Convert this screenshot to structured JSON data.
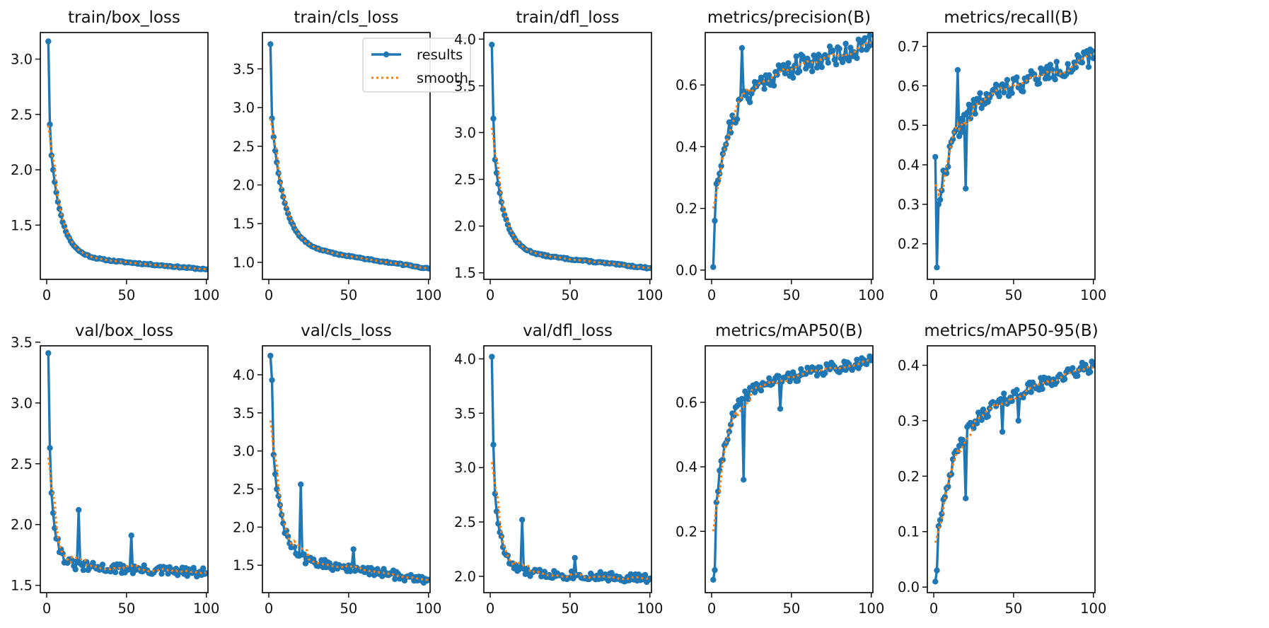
{
  "figure": {
    "series_names": [
      "results",
      "smooth"
    ],
    "colors": {
      "results": "#1f77b4",
      "smooth": "#ff7f0e",
      "axes": "#000000",
      "background": "#ffffff"
    }
  },
  "chart_data": [
    {
      "type": "line",
      "title": "train/box_loss",
      "x_ticks": [
        0,
        50,
        100
      ],
      "y_ticks": [
        1.5,
        2.0,
        2.5,
        3.0
      ],
      "y_tick_labels": [
        "1.5",
        "2.0",
        "2.5",
        "3.0"
      ],
      "xlim": [
        -4,
        101
      ],
      "ylim": [
        1.01,
        3.24
      ],
      "start": 3.16,
      "end": 1.1,
      "p2": 2.41,
      "p3": 2.13,
      "decay": 0.15,
      "rel": 0.12,
      "noise": 0.006,
      "spikes": [],
      "floor": 0.0,
      "seed": 11,
      "smooth_start": 2.4
    },
    {
      "type": "line",
      "title": "train/cls_loss",
      "x_ticks": [
        0,
        50,
        100
      ],
      "y_ticks": [
        1.0,
        1.5,
        2.0,
        2.5,
        3.0,
        3.5
      ],
      "y_tick_labels": [
        "1.0",
        "1.5",
        "2.0",
        "2.5",
        "3.0",
        "3.5"
      ],
      "xlim": [
        -4,
        101
      ],
      "ylim": [
        0.78,
        3.97
      ],
      "start": 3.82,
      "end": 0.92,
      "p2": 2.86,
      "p3": 2.62,
      "decay": 0.13,
      "rel": 0.18,
      "noise": 0.008,
      "spikes": [],
      "floor": 0.0,
      "seed": 12,
      "smooth_start": 2.86,
      "drop_at": 95,
      "drop_to": 0.93
    },
    {
      "type": "line",
      "title": "train/dfl_loss",
      "x_ticks": [
        0,
        50,
        100
      ],
      "y_ticks": [
        1.5,
        2.0,
        2.5,
        3.0,
        3.5,
        4.0
      ],
      "y_tick_labels": [
        "1.5",
        "2.0",
        "2.5",
        "3.0",
        "3.5",
        "4.0"
      ],
      "xlim": [
        -4,
        101
      ],
      "ylim": [
        1.43,
        4.07
      ],
      "start": 3.94,
      "end": 1.55,
      "p2": 3.15,
      "p3": 2.71,
      "decay": 0.15,
      "rel": 0.16,
      "noise": 0.008,
      "spikes": [],
      "floor": 0.0,
      "seed": 13,
      "smooth_start": 3.05
    },
    {
      "type": "line",
      "title": "metrics/precision(B)",
      "x_ticks": [
        0,
        50,
        100
      ],
      "y_ticks": [
        0.0,
        0.2,
        0.4,
        0.6
      ],
      "y_tick_labels": [
        "0.0",
        "0.2",
        "0.4",
        "0.6"
      ],
      "xlim": [
        -4,
        101
      ],
      "ylim": [
        -0.03,
        0.77
      ],
      "start": 0.01,
      "end": 0.73,
      "p2": 0.16,
      "p3": 0.28,
      "decay": 0.09,
      "rel": 0.3,
      "noise": 0.035,
      "spikes": [
        [
          19,
          0.72
        ]
      ],
      "floor": 0.0,
      "seed": 21,
      "smooth_start": 0.2
    },
    {
      "type": "line",
      "title": "metrics/recall(B)",
      "x_ticks": [
        0,
        50,
        100
      ],
      "y_ticks": [
        0.2,
        0.3,
        0.4,
        0.5,
        0.6,
        0.7
      ],
      "y_tick_labels": [
        "0.2",
        "0.3",
        "0.4",
        "0.5",
        "0.6",
        "0.7"
      ],
      "xlim": [
        -4,
        101
      ],
      "ylim": [
        0.11,
        0.735
      ],
      "start": 0.42,
      "end": 0.67,
      "p2": 0.14,
      "p3": 0.3,
      "decay": 0.1,
      "rel": 0.35,
      "noise": 0.025,
      "spikes": [
        [
          20,
          0.34
        ],
        [
          15,
          0.64
        ]
      ],
      "floor": 0.0,
      "seed": 22,
      "smooth_start": 0.35
    },
    {
      "type": "line",
      "title": "val/box_loss",
      "x_ticks": [
        0,
        50,
        100
      ],
      "y_ticks": [
        1.5,
        2.0,
        2.5,
        3.0,
        3.5
      ],
      "y_tick_labels": [
        "1.5",
        "2.0",
        "2.5",
        "3.0",
        "3.5"
      ],
      "xlim": [
        -4,
        101
      ],
      "ylim": [
        1.44,
        3.47
      ],
      "start": 3.41,
      "end": 1.6,
      "p2": 2.63,
      "p3": 2.26,
      "decay": 0.28,
      "rel": 0.1,
      "noise": 0.04,
      "spikes": [
        [
          20,
          2.12
        ],
        [
          53,
          1.91
        ]
      ],
      "floor": 0.0,
      "seed": 31,
      "smooth_start": 2.55
    },
    {
      "type": "line",
      "title": "val/cls_loss",
      "x_ticks": [
        0,
        50,
        100
      ],
      "y_ticks": [
        1.5,
        2.0,
        2.5,
        3.0,
        3.5,
        4.0
      ],
      "y_tick_labels": [
        "1.5",
        "2.0",
        "2.5",
        "3.0",
        "3.5",
        "4.0"
      ],
      "xlim": [
        -4,
        101
      ],
      "ylim": [
        1.14,
        4.38
      ],
      "start": 4.25,
      "end": 1.31,
      "p2": 3.93,
      "p3": 2.95,
      "decay": 0.18,
      "rel": 0.18,
      "noise": 0.06,
      "spikes": [
        [
          20,
          2.56
        ],
        [
          53,
          1.71
        ]
      ],
      "floor": 0.0,
      "seed": 32,
      "smooth_start": 3.4
    },
    {
      "type": "line",
      "title": "val/dfl_loss",
      "x_ticks": [
        0,
        50,
        100
      ],
      "y_ticks": [
        2.0,
        2.5,
        3.0,
        3.5,
        4.0
      ],
      "y_tick_labels": [
        "2.0",
        "2.5",
        "3.0",
        "3.5",
        "4.0"
      ],
      "xlim": [
        -4,
        101
      ],
      "ylim": [
        1.85,
        4.12
      ],
      "start": 4.02,
      "end": 1.98,
      "p2": 3.21,
      "p3": 2.76,
      "decay": 0.22,
      "rel": 0.08,
      "noise": 0.04,
      "spikes": [
        [
          20,
          2.52
        ],
        [
          53,
          2.17
        ]
      ],
      "floor": 0.0,
      "seed": 33,
      "smooth_start": 3.05
    },
    {
      "type": "line",
      "title": "metrics/mAP50(B)",
      "x_ticks": [
        0,
        50,
        100
      ],
      "y_ticks": [
        0.2,
        0.4,
        0.6
      ],
      "y_tick_labels": [
        "0.2",
        "0.4",
        "0.6"
      ],
      "xlim": [
        -4,
        101
      ],
      "ylim": [
        0.01,
        0.775
      ],
      "start": 0.05,
      "end": 0.73,
      "p2": 0.08,
      "p3": 0.29,
      "decay": 0.13,
      "rel": 0.22,
      "noise": 0.018,
      "spikes": [
        [
          20,
          0.36
        ],
        [
          43,
          0.58
        ]
      ],
      "floor": 0.0,
      "seed": 41,
      "smooth_start": 0.2
    },
    {
      "type": "line",
      "title": "metrics/mAP50-95(B)",
      "x_ticks": [
        0,
        50,
        100
      ],
      "y_ticks": [
        0.0,
        0.1,
        0.2,
        0.3,
        0.4
      ],
      "y_tick_labels": [
        "0.0",
        "0.1",
        "0.2",
        "0.3",
        "0.4"
      ],
      "xlim": [
        -4,
        101
      ],
      "ylim": [
        -0.01,
        0.435
      ],
      "start": 0.01,
      "end": 0.4,
      "p2": 0.03,
      "p3": 0.11,
      "decay": 0.085,
      "rel": 0.34,
      "noise": 0.012,
      "spikes": [
        [
          20,
          0.16
        ],
        [
          43,
          0.28
        ],
        [
          53,
          0.3
        ]
      ],
      "floor": 0.0,
      "seed": 42,
      "smooth_start": 0.08
    }
  ]
}
